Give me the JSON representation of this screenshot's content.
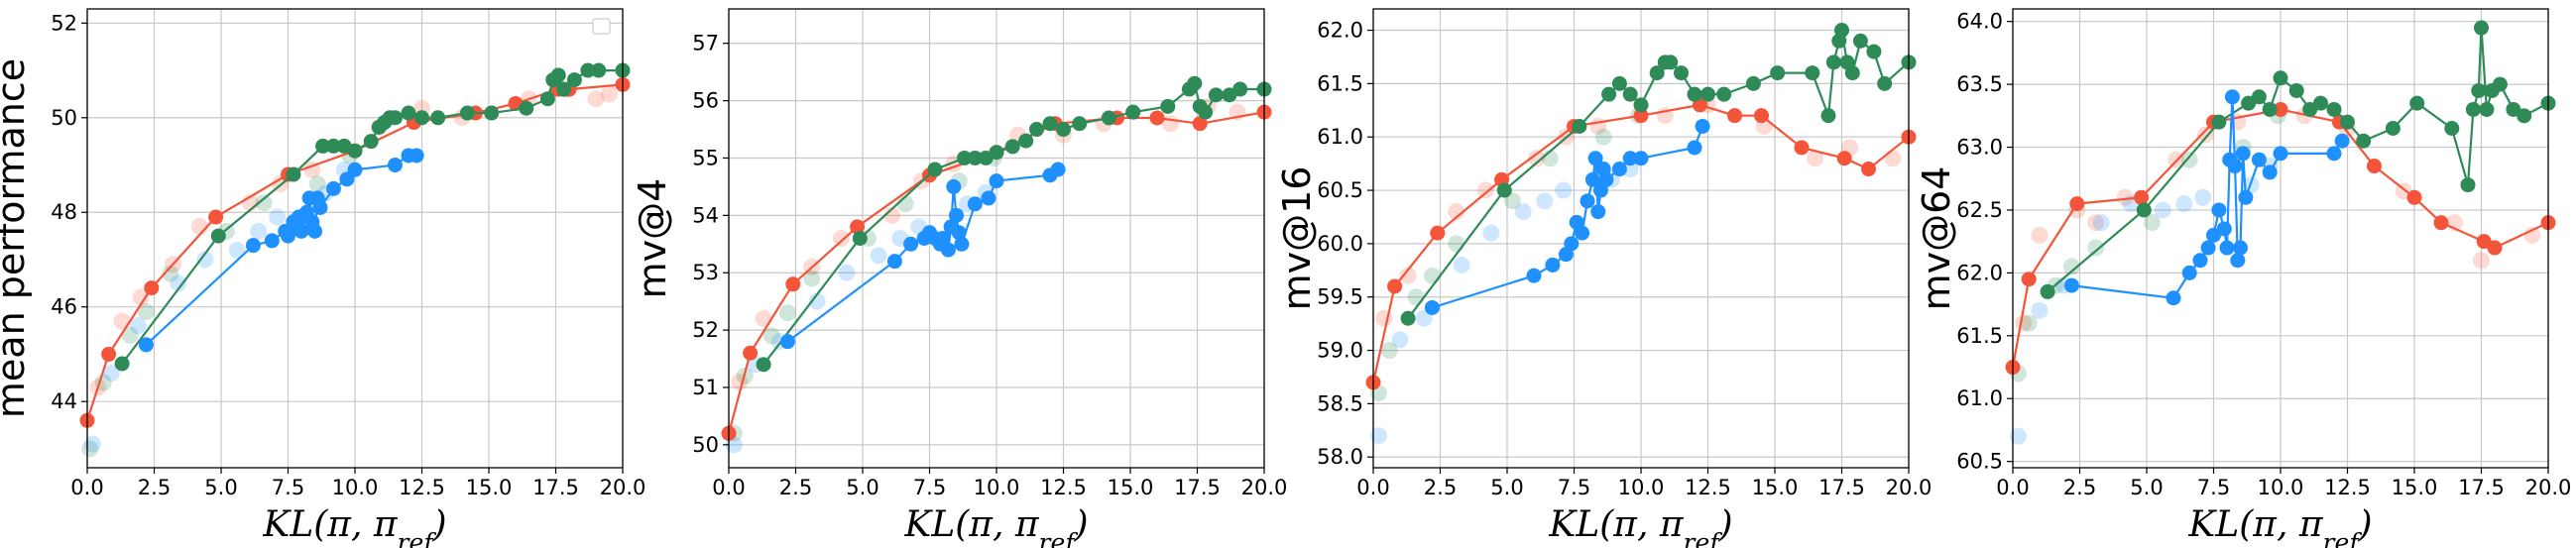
{
  "colors": {
    "red": "#f4553a",
    "green": "#2e8b57",
    "blue": "#1e90ff",
    "grid": "#c8c8c8"
  },
  "legend": {
    "location": "upper right",
    "entries": []
  },
  "chart_data": [
    {
      "type": "line",
      "title": "",
      "xlabel": "KL(π, π_ref)",
      "ylabel": "mean performance",
      "xlim": [
        0,
        20
      ],
      "ylim": [
        42.6,
        52.3
      ],
      "xticks": [
        "0.0",
        "2.5",
        "5.0",
        "7.5",
        "10.0",
        "12.5",
        "15.0",
        "17.5",
        "20.0"
      ],
      "yticks": [
        {
          "v": 44,
          "label": "44"
        },
        {
          "v": 46,
          "label": "46"
        },
        {
          "v": 48,
          "label": "48"
        },
        {
          "v": 50,
          "label": "50"
        },
        {
          "v": 52,
          "label": "52"
        }
      ],
      "series": [
        {
          "name": "red",
          "color_key": "red",
          "x": [
            0,
            0.8,
            2.4,
            4.8,
            7.5,
            10.0,
            12.2,
            14.5,
            16.0,
            17.6,
            18.0,
            20.0
          ],
          "y": [
            43.6,
            45.0,
            46.4,
            47.9,
            48.8,
            49.3,
            49.9,
            50.1,
            50.3,
            50.6,
            50.6,
            50.7
          ]
        },
        {
          "name": "green",
          "color_key": "green",
          "x": [
            1.3,
            4.9,
            7.7,
            8.8,
            9.2,
            9.6,
            10.0,
            10.6,
            10.9,
            11.1,
            11.3,
            11.5,
            12.0,
            12.5,
            13.1,
            14.2,
            15.1,
            16.4,
            17.2,
            17.4,
            17.6,
            17.8,
            18.2,
            18.7,
            19.1,
            20.0
          ],
          "y": [
            44.8,
            47.5,
            48.8,
            49.4,
            49.4,
            49.4,
            49.3,
            49.5,
            49.8,
            49.9,
            50.0,
            50.0,
            50.1,
            50.0,
            50.0,
            50.1,
            50.1,
            50.2,
            50.4,
            50.8,
            50.9,
            50.6,
            50.8,
            51.0,
            51.0,
            51.0
          ]
        },
        {
          "name": "blue",
          "color_key": "blue",
          "x": [
            2.2,
            6.2,
            6.9,
            7.4,
            7.5,
            7.7,
            7.8,
            7.9,
            8.0,
            8.2,
            8.3,
            8.4,
            8.5,
            8.6,
            8.7,
            9.2,
            9.7,
            10.0,
            11.5,
            12.0,
            12.3
          ],
          "y": [
            45.2,
            47.3,
            47.4,
            47.6,
            47.5,
            47.8,
            47.7,
            47.9,
            47.6,
            48.0,
            48.3,
            47.8,
            47.6,
            48.3,
            48.1,
            48.5,
            48.7,
            48.9,
            49.0,
            49.2,
            49.2
          ]
        }
      ],
      "background": [
        {
          "color_key": "red",
          "x": [
            0.4,
            1.3,
            2.0,
            3.2,
            4.2,
            6.1,
            7.2,
            8.4,
            10.9,
            12.5,
            14.0,
            16.5,
            17.9,
            19.0,
            19.5
          ],
          "y": [
            44.3,
            45.7,
            46.2,
            46.9,
            47.7,
            48.2,
            48.6,
            48.9,
            49.8,
            50.2,
            50.0,
            50.4,
            50.6,
            50.4,
            50.5
          ]
        },
        {
          "color_key": "green",
          "x": [
            0.1,
            0.6,
            1.6,
            2.2,
            3.1,
            5.2,
            6.6,
            8.6,
            9.8
          ],
          "y": [
            43.0,
            44.4,
            45.4,
            45.9,
            46.7,
            47.6,
            48.2,
            48.6,
            49.2
          ]
        },
        {
          "color_key": "blue",
          "x": [
            0.2,
            0.9,
            1.9,
            3.4,
            4.4,
            5.6,
            6.4,
            7.1,
            8.9,
            9.6
          ],
          "y": [
            43.1,
            44.6,
            45.6,
            46.5,
            47.0,
            47.2,
            47.6,
            47.9,
            48.4,
            48.9
          ]
        }
      ]
    },
    {
      "type": "line",
      "title": "",
      "xlabel": "KL(π, π_ref)",
      "ylabel": "mv@4",
      "xlim": [
        0,
        20
      ],
      "ylim": [
        49.6,
        57.6
      ],
      "xticks": [
        "0.0",
        "2.5",
        "5.0",
        "7.5",
        "10.0",
        "12.5",
        "15.0",
        "17.5",
        "20.0"
      ],
      "yticks": [
        {
          "v": 50,
          "label": "50"
        },
        {
          "v": 51,
          "label": "51"
        },
        {
          "v": 52,
          "label": "52"
        },
        {
          "v": 53,
          "label": "53"
        },
        {
          "v": 54,
          "label": "54"
        },
        {
          "v": 55,
          "label": "55"
        },
        {
          "v": 56,
          "label": "56"
        },
        {
          "v": 57,
          "label": "57"
        }
      ],
      "series": [
        {
          "name": "red",
          "color_key": "red",
          "x": [
            0,
            0.8,
            2.4,
            4.8,
            7.5,
            10.0,
            12.2,
            14.5,
            16.0,
            17.6,
            20.0
          ],
          "y": [
            50.2,
            51.6,
            52.8,
            53.8,
            54.7,
            55.1,
            55.6,
            55.7,
            55.7,
            55.6,
            55.8
          ]
        },
        {
          "name": "green",
          "color_key": "green",
          "x": [
            1.3,
            4.9,
            7.7,
            8.8,
            9.2,
            9.6,
            10.0,
            10.6,
            11.1,
            11.5,
            12.0,
            12.5,
            13.1,
            14.2,
            15.1,
            16.4,
            17.2,
            17.4,
            17.6,
            17.8,
            18.2,
            18.7,
            19.1,
            20.0
          ],
          "y": [
            51.4,
            53.6,
            54.8,
            55.0,
            55.0,
            55.0,
            55.1,
            55.2,
            55.3,
            55.5,
            55.6,
            55.5,
            55.6,
            55.7,
            55.8,
            55.9,
            56.2,
            56.3,
            55.9,
            55.8,
            56.1,
            56.1,
            56.2,
            56.2
          ]
        },
        {
          "name": "blue",
          "color_key": "blue",
          "x": [
            2.2,
            6.2,
            6.8,
            7.3,
            7.5,
            7.7,
            7.9,
            8.0,
            8.2,
            8.3,
            8.4,
            8.5,
            8.6,
            8.7,
            9.2,
            9.7,
            10.0,
            12.0,
            12.3
          ],
          "y": [
            51.8,
            53.2,
            53.5,
            53.6,
            53.7,
            53.6,
            53.5,
            53.6,
            53.4,
            53.8,
            54.5,
            54.0,
            53.7,
            53.5,
            54.2,
            54.3,
            54.6,
            54.7,
            54.8
          ]
        }
      ],
      "background": [
        {
          "color_key": "red",
          "x": [
            0.4,
            1.3,
            3.1,
            4.2,
            6.1,
            7.2,
            8.4,
            10.8,
            12.5,
            14.0,
            16.5,
            17.9,
            19.0
          ],
          "y": [
            51.1,
            52.2,
            53.1,
            53.6,
            54.0,
            54.6,
            54.9,
            55.4,
            55.4,
            55.6,
            55.6,
            55.9,
            55.8
          ]
        },
        {
          "color_key": "green",
          "x": [
            0.2,
            0.6,
            1.6,
            2.2,
            3.1,
            5.2,
            6.6,
            8.6,
            9.9
          ],
          "y": [
            50.2,
            51.2,
            51.9,
            52.3,
            52.9,
            53.6,
            54.2,
            54.6,
            55.0
          ]
        },
        {
          "color_key": "blue",
          "x": [
            0.2,
            1.0,
            1.9,
            3.3,
            4.4,
            5.6,
            6.4,
            7.1,
            8.9,
            9.6
          ],
          "y": [
            50.0,
            51.4,
            51.8,
            52.5,
            53.0,
            53.3,
            53.6,
            53.8,
            54.2,
            54.4
          ]
        }
      ]
    },
    {
      "type": "line",
      "title": "",
      "xlabel": "KL(π, π_ref)",
      "ylabel": "mv@16",
      "xlim": [
        0,
        20
      ],
      "ylim": [
        57.9,
        62.2
      ],
      "xticks": [
        "0.0",
        "2.5",
        "5.0",
        "7.5",
        "10.0",
        "12.5",
        "15.0",
        "17.5",
        "20.0"
      ],
      "yticks": [
        {
          "v": 58.0,
          "label": "58.0"
        },
        {
          "v": 58.5,
          "label": "58.5"
        },
        {
          "v": 59.0,
          "label": "59.0"
        },
        {
          "v": 59.5,
          "label": "59.5"
        },
        {
          "v": 60.0,
          "label": "60.0"
        },
        {
          "v": 60.5,
          "label": "60.5"
        },
        {
          "v": 61.0,
          "label": "61.0"
        },
        {
          "v": 61.5,
          "label": "61.5"
        },
        {
          "v": 62.0,
          "label": "62.0"
        }
      ],
      "series": [
        {
          "name": "red",
          "color_key": "red",
          "x": [
            0,
            0.8,
            2.4,
            4.8,
            7.5,
            10.0,
            12.2,
            13.5,
            14.5,
            16.0,
            17.6,
            18.5,
            20.0
          ],
          "y": [
            58.7,
            59.6,
            60.1,
            60.6,
            61.1,
            61.2,
            61.3,
            61.2,
            61.2,
            60.9,
            60.8,
            60.7,
            61.0
          ]
        },
        {
          "name": "green",
          "color_key": "green",
          "x": [
            1.3,
            4.9,
            7.7,
            8.8,
            9.2,
            9.6,
            10.0,
            10.6,
            10.9,
            11.1,
            11.5,
            12.0,
            12.5,
            13.1,
            14.2,
            15.1,
            16.4,
            17.0,
            17.2,
            17.4,
            17.5,
            17.7,
            17.9,
            18.2,
            18.7,
            19.1,
            20.0
          ],
          "y": [
            59.3,
            60.5,
            61.1,
            61.4,
            61.5,
            61.4,
            61.3,
            61.6,
            61.7,
            61.7,
            61.6,
            61.4,
            61.4,
            61.4,
            61.5,
            61.6,
            61.6,
            61.2,
            61.7,
            61.9,
            62.0,
            61.7,
            61.6,
            61.9,
            61.8,
            61.5,
            61.7
          ]
        },
        {
          "name": "blue",
          "color_key": "blue",
          "x": [
            2.2,
            6.0,
            6.7,
            7.2,
            7.4,
            7.6,
            7.8,
            8.0,
            8.2,
            8.3,
            8.4,
            8.5,
            8.6,
            8.7,
            9.2,
            9.6,
            10.0,
            12.0,
            12.3
          ],
          "y": [
            59.4,
            59.7,
            59.8,
            59.9,
            60.0,
            60.2,
            60.1,
            60.4,
            60.6,
            60.8,
            60.3,
            60.5,
            60.7,
            60.6,
            60.7,
            60.8,
            60.8,
            60.9,
            61.1
          ]
        }
      ],
      "background": [
        {
          "color_key": "red",
          "x": [
            0.4,
            1.3,
            3.1,
            4.2,
            6.1,
            7.2,
            8.4,
            10.9,
            12.5,
            14.6,
            16.5,
            17.8,
            19.4
          ],
          "y": [
            59.3,
            59.7,
            60.3,
            60.5,
            60.8,
            61.0,
            61.1,
            61.2,
            61.3,
            61.1,
            60.8,
            60.9,
            60.8
          ]
        },
        {
          "color_key": "green",
          "x": [
            0.2,
            0.6,
            1.6,
            2.2,
            3.1,
            5.2,
            6.6,
            8.6,
            9.9
          ],
          "y": [
            58.6,
            59.0,
            59.5,
            59.7,
            60.0,
            60.4,
            60.8,
            61.0,
            61.2
          ]
        },
        {
          "color_key": "blue",
          "x": [
            0.2,
            1.0,
            1.9,
            3.3,
            4.4,
            5.6,
            6.4,
            7.1,
            8.9,
            9.6
          ],
          "y": [
            58.2,
            59.1,
            59.3,
            59.8,
            60.1,
            60.3,
            60.4,
            60.5,
            60.6,
            60.7
          ]
        }
      ]
    },
    {
      "type": "line",
      "title": "",
      "xlabel": "KL(π, π_ref)",
      "ylabel": "mv@64",
      "xlim": [
        0,
        20
      ],
      "ylim": [
        60.45,
        64.1
      ],
      "xticks": [
        "0.0",
        "2.5",
        "5.0",
        "7.5",
        "10.0",
        "12.5",
        "15.0",
        "17.5",
        "20.0"
      ],
      "yticks": [
        {
          "v": 60.5,
          "label": "60.5"
        },
        {
          "v": 61.0,
          "label": "61.0"
        },
        {
          "v": 61.5,
          "label": "61.5"
        },
        {
          "v": 62.0,
          "label": "62.0"
        },
        {
          "v": 62.5,
          "label": "62.5"
        },
        {
          "v": 63.0,
          "label": "63.0"
        },
        {
          "v": 63.5,
          "label": "63.5"
        },
        {
          "v": 64.0,
          "label": "64.0"
        }
      ],
      "series": [
        {
          "name": "red",
          "color_key": "red",
          "x": [
            0,
            0.6,
            2.4,
            4.8,
            7.5,
            10.0,
            12.2,
            13.5,
            15.0,
            16.0,
            17.6,
            18.0,
            20.0
          ],
          "y": [
            61.25,
            61.95,
            62.55,
            62.6,
            63.2,
            63.3,
            63.2,
            62.85,
            62.6,
            62.4,
            62.25,
            62.2,
            62.4
          ]
        },
        {
          "name": "green",
          "color_key": "green",
          "x": [
            1.3,
            4.9,
            7.7,
            8.8,
            9.2,
            9.6,
            10.0,
            10.6,
            11.1,
            11.5,
            12.0,
            12.5,
            13.1,
            14.2,
            15.1,
            16.4,
            17.0,
            17.2,
            17.4,
            17.5,
            17.7,
            17.9,
            18.2,
            18.7,
            19.1,
            20.0
          ],
          "y": [
            61.85,
            62.5,
            63.2,
            63.35,
            63.4,
            63.3,
            63.55,
            63.45,
            63.3,
            63.35,
            63.3,
            63.2,
            63.05,
            63.15,
            63.35,
            63.15,
            62.7,
            63.3,
            63.45,
            63.95,
            63.3,
            63.45,
            63.5,
            63.3,
            63.25,
            63.35
          ]
        },
        {
          "name": "blue",
          "color_key": "blue",
          "x": [
            2.2,
            6.0,
            6.6,
            7.0,
            7.3,
            7.5,
            7.7,
            7.9,
            8.0,
            8.1,
            8.2,
            8.3,
            8.4,
            8.5,
            8.6,
            8.7,
            9.2,
            9.6,
            10.0,
            12.0,
            12.3
          ],
          "y": [
            61.9,
            61.8,
            62.0,
            62.1,
            62.2,
            62.3,
            62.5,
            62.35,
            62.2,
            62.9,
            63.4,
            62.85,
            62.1,
            62.2,
            62.95,
            62.6,
            62.9,
            62.8,
            62.95,
            62.95,
            63.05
          ]
        }
      ],
      "background": [
        {
          "color_key": "red",
          "x": [
            0.4,
            1.0,
            2.4,
            3.1,
            4.2,
            6.1,
            7.2,
            8.4,
            10.9,
            12.5,
            14.6,
            16.5,
            17.5,
            19.4
          ],
          "y": [
            61.6,
            62.3,
            62.5,
            62.4,
            62.6,
            62.9,
            63.1,
            63.2,
            63.25,
            63.15,
            62.65,
            62.4,
            62.1,
            62.3
          ]
        },
        {
          "color_key": "green",
          "x": [
            0.2,
            0.6,
            1.6,
            2.2,
            3.1,
            5.2,
            6.6,
            8.6,
            9.9
          ],
          "y": [
            61.2,
            61.6,
            61.9,
            62.05,
            62.2,
            62.4,
            62.9,
            63.0,
            63.25
          ]
        },
        {
          "color_key": "blue",
          "x": [
            0.2,
            1.0,
            1.9,
            3.3,
            4.4,
            5.6,
            6.4,
            7.1,
            8.9,
            9.6
          ],
          "y": [
            60.7,
            61.7,
            61.9,
            62.4,
            62.55,
            62.5,
            62.55,
            62.6,
            62.7,
            62.85
          ]
        }
      ]
    }
  ]
}
